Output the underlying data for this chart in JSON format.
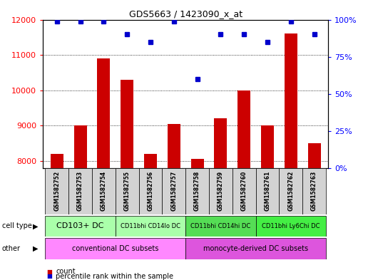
{
  "title": "GDS5663 / 1423090_x_at",
  "samples": [
    "GSM1582752",
    "GSM1582753",
    "GSM1582754",
    "GSM1582755",
    "GSM1582756",
    "GSM1582757",
    "GSM1582758",
    "GSM1582759",
    "GSM1582760",
    "GSM1582761",
    "GSM1582762",
    "GSM1582763"
  ],
  "counts": [
    8200,
    9000,
    10900,
    10300,
    8200,
    9050,
    8050,
    9200,
    10000,
    9000,
    11600,
    8500
  ],
  "percentiles": [
    99,
    99,
    99,
    90,
    85,
    99,
    60,
    90,
    90,
    85,
    99,
    90
  ],
  "ylim_left": [
    7800,
    12000
  ],
  "ylim_right": [
    0,
    100
  ],
  "yticks_left": [
    8000,
    9000,
    10000,
    11000,
    12000
  ],
  "yticks_right": [
    0,
    25,
    50,
    75,
    100
  ],
  "bar_color": "#cc0000",
  "dot_color": "#0000cc",
  "sample_box_color": "#d3d3d3",
  "ct_groups": [
    {
      "label": "CD103+ DC",
      "start": 0,
      "end": 2,
      "color": "#aaffaa"
    },
    {
      "label": "CD11bhi CD14lo DC",
      "start": 3,
      "end": 5,
      "color": "#aaffaa"
    },
    {
      "label": "CD11bhi CD14hi DC",
      "start": 6,
      "end": 8,
      "color": "#55dd55"
    },
    {
      "label": "CD11bhi Ly6Chi DC",
      "start": 9,
      "end": 11,
      "color": "#44ee44"
    }
  ],
  "other_groups": [
    {
      "label": "conventional DC subsets",
      "start": 0,
      "end": 5,
      "color": "#ff88ff"
    },
    {
      "label": "monocyte-derived DC subsets",
      "start": 6,
      "end": 11,
      "color": "#dd55dd"
    }
  ],
  "legend_count_color": "#cc0000",
  "legend_perc_color": "#0000cc"
}
